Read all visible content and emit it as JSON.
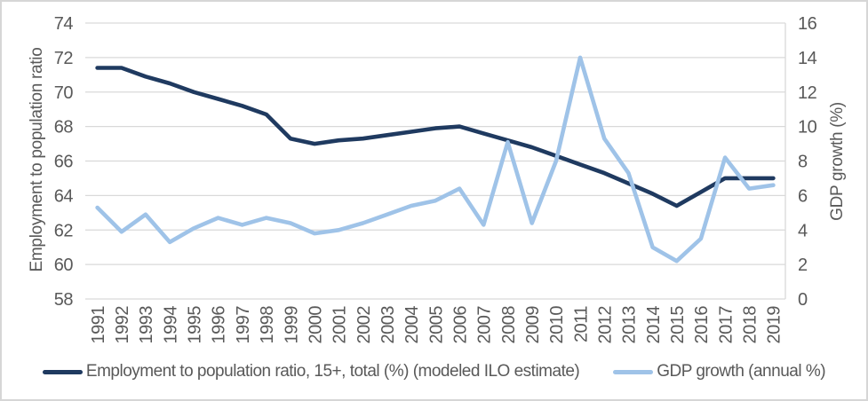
{
  "chart_data": {
    "type": "line",
    "x": [
      1991,
      1992,
      1993,
      1994,
      1995,
      1996,
      1997,
      1998,
      1999,
      2000,
      2001,
      2002,
      2003,
      2004,
      2005,
      2006,
      2007,
      2008,
      2009,
      2010,
      2011,
      2012,
      2013,
      2014,
      2015,
      2016,
      2017,
      2018,
      2019
    ],
    "series": [
      {
        "name": "Employment to population ratio, 15+, total (%) (modeled ILO estimate)",
        "axis": "left",
        "color": "#1f3a60",
        "values": [
          71.4,
          71.4,
          70.9,
          70.5,
          70.0,
          69.6,
          69.2,
          68.7,
          67.3,
          67.0,
          67.2,
          67.3,
          67.5,
          67.7,
          67.9,
          68.0,
          67.6,
          67.2,
          66.8,
          66.3,
          65.8,
          65.3,
          64.7,
          64.1,
          63.4,
          64.2,
          65.0,
          65.0,
          65.0
        ]
      },
      {
        "name": "GDP growth (annual %)",
        "axis": "right",
        "color": "#9fc3e8",
        "values": [
          5.3,
          3.9,
          4.9,
          3.3,
          4.1,
          4.7,
          4.3,
          4.7,
          4.4,
          3.8,
          4.0,
          4.4,
          4.9,
          5.4,
          5.7,
          6.4,
          4.3,
          9.1,
          4.4,
          8.0,
          14.0,
          9.3,
          7.3,
          3.0,
          2.2,
          3.5,
          8.2,
          6.4,
          6.6
        ]
      }
    ],
    "left_axis": {
      "label": "Employment to population ratio",
      "min": 58,
      "max": 74,
      "ticks": [
        58,
        60,
        62,
        64,
        66,
        68,
        70,
        72,
        74
      ]
    },
    "right_axis": {
      "label": "GDP growth (%)",
      "min": 0,
      "max": 16,
      "ticks": [
        0,
        2,
        4,
        6,
        8,
        10,
        12,
        14,
        16
      ]
    },
    "grid": true,
    "legend_position": "bottom",
    "colors": {
      "gridline": "#d9d9d9",
      "axis_text": "#595959",
      "background": "#ffffff"
    }
  }
}
